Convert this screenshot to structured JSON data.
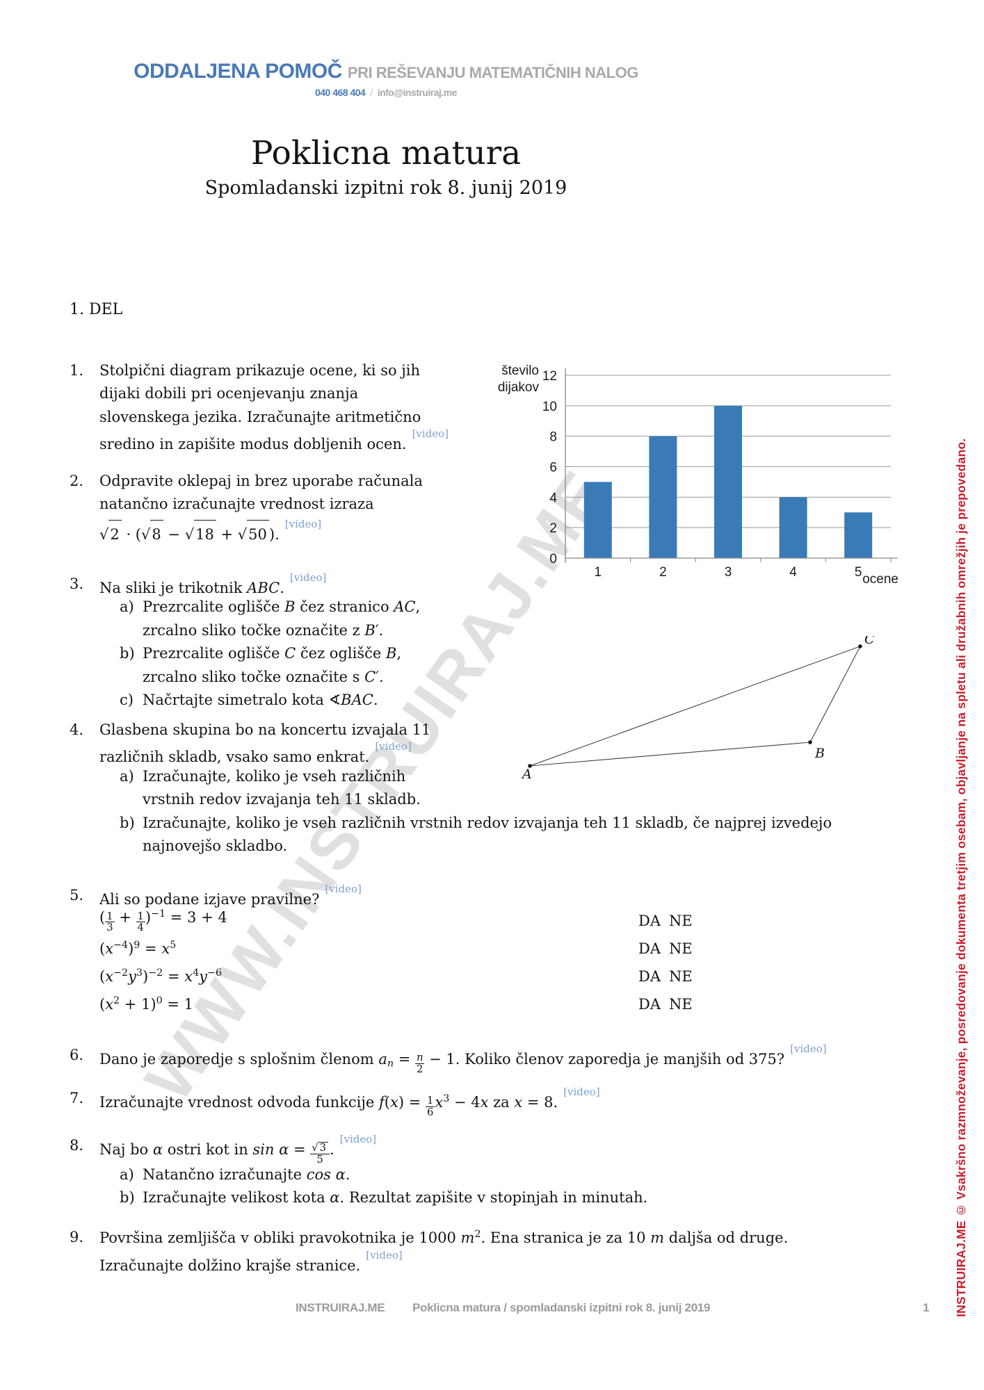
{
  "labels": {
    "video": "[video]",
    "da": "DA",
    "ne": "NE"
  },
  "header": {
    "brand": "ODDALJENA POMOČ",
    "tagline": "PRI REŠEVANJU MATEMATIČNIH NALOG",
    "phone": "040 468 404",
    "separator": "/",
    "email": "info@instruiraj.me"
  },
  "title": "Poklicna matura",
  "subtitle": "Spomladanski izpitni rok 8. junij 2019",
  "section": "1. DEL",
  "questions": {
    "q1": {
      "number": "1.",
      "lines": [
        "Stolpični diagram prikazuje ocene, ki so jih",
        "dijaki dobili pri ocenjevanju znanja",
        "slovenskega jezika. Izračunajte aritmetično",
        "sredino in zapišite modus dobljenih ocen."
      ]
    },
    "q2": {
      "number": "2.",
      "lines": [
        "Odpravite oklepaj in brez uporabe računala",
        "natančno izračunajte vrednost izraza"
      ],
      "formula": "\\s{2} · (\\s{8} − \\s{18} + \\s{50})."
    },
    "q3": {
      "number": "3.",
      "intro": "Na sliki je trikotnik \\i{ABC}.",
      "items": [
        {
          "label": "a)",
          "lines": [
            "Prezrcalite oglišče \\i{B} čez stranico \\i{AC},",
            "zrcalno sliko točke označite z \\i{B}′."
          ]
        },
        {
          "label": "b)",
          "lines": [
            "Prezrcalite oglišče \\i{C} čez oglišče \\i{B},",
            "zrcalno sliko točke označite s \\i{C}′."
          ]
        },
        {
          "label": "c)",
          "lines": [
            "Načrtajte simetralo kota ∢\\i{BAC}."
          ]
        }
      ]
    },
    "q4": {
      "number": "4.",
      "lines": [
        "Glasbena skupina bo na koncertu izvajala 11",
        "različnih skladb, vsako samo enkrat."
      ],
      "items": [
        {
          "label": "a)",
          "lines": [
            "Izračunajte, koliko je vseh različnih",
            "vrstnih redov izvajanja teh 11 skladb."
          ]
        },
        {
          "label": "b)",
          "lines": [
            "Izračunajte, koliko je vseh različnih vrstnih redov izvajanja teh 11 skladb, če najprej izvedejo",
            "najnovejšo skladbo."
          ]
        }
      ]
    },
    "q5": {
      "number": "5.",
      "intro": "Ali so podane izjave pravilne?",
      "statements": [
        "(\\f{1}{3} + \\f{1}{4})^{−1} = 3 + 4",
        "(\\i{x}^{−4})^{9} = \\i{x}^{5}",
        "(\\i{x}^{−2}\\i{y}^{3})^{−2} = \\i{x}^{4}\\i{y}^{−6}",
        "(\\i{x}^{2} + 1)^{0} = 1"
      ]
    },
    "q6": {
      "number": "6.",
      "text": "Dano je zaporedje s splošnim členom \\i{a}_{\\i{n}} = \\f{\\i{n}}{2} − 1. Koliko členov zaporedja je manjših od 375?"
    },
    "q7": {
      "number": "7.",
      "text": "Izračunajte vrednost odvoda funkcije \\i{f}(\\i{x}) = \\f{1}{6}\\i{x}^{3} − 4\\i{x} za \\i{x} = 8."
    },
    "q8": {
      "number": "8.",
      "intro": "Naj bo \\i{α} ostri kot in \\i{sin α} = \\f{\\s{3}}{5}.",
      "items": [
        {
          "label": "a)",
          "lines": [
            "Natančno izračunajte \\i{cos α}."
          ]
        },
        {
          "label": "b)",
          "lines": [
            "Izračunajte velikost kota \\i{α}. Rezultat zapišite v stopinjah in minutah."
          ]
        }
      ]
    },
    "q9": {
      "number": "9.",
      "lines": [
        "Površina zemljišča v obliki pravokotnika je 1000 \\i{m}^{2}. Ena stranica je za 10 \\i{m} daljša od druge.",
        "Izračunajte dolžino krajše stranice."
      ]
    }
  },
  "chart_data": {
    "type": "bar",
    "categories": [
      "1",
      "2",
      "3",
      "4",
      "5"
    ],
    "values": [
      5,
      8,
      10,
      4,
      3
    ],
    "xlabel": "ocene",
    "ylabel_lines": [
      "število",
      "dijakov"
    ],
    "ylim": [
      0,
      12
    ],
    "ytick_step": 2,
    "grid": true,
    "bar_color": "#3a7ab7"
  },
  "figure": {
    "triangle": {
      "vertices": [
        "A",
        "B",
        "C"
      ]
    }
  },
  "watermark": "WWW.INSTRUIRAJ.ME",
  "sidebar_notice": "INSTRUIRAJ.ME © Vsakršno razmnoževanje, posredovanje dokumenta tretjim osebam, objavljanje na spletu ali družabnih omrežjih je prepovedano.",
  "footer": {
    "brand": "INSTRUIRAJ.ME",
    "document": "Poklicna matura / spomladanski izpitni rok 8. junij 2019",
    "page": "1"
  }
}
